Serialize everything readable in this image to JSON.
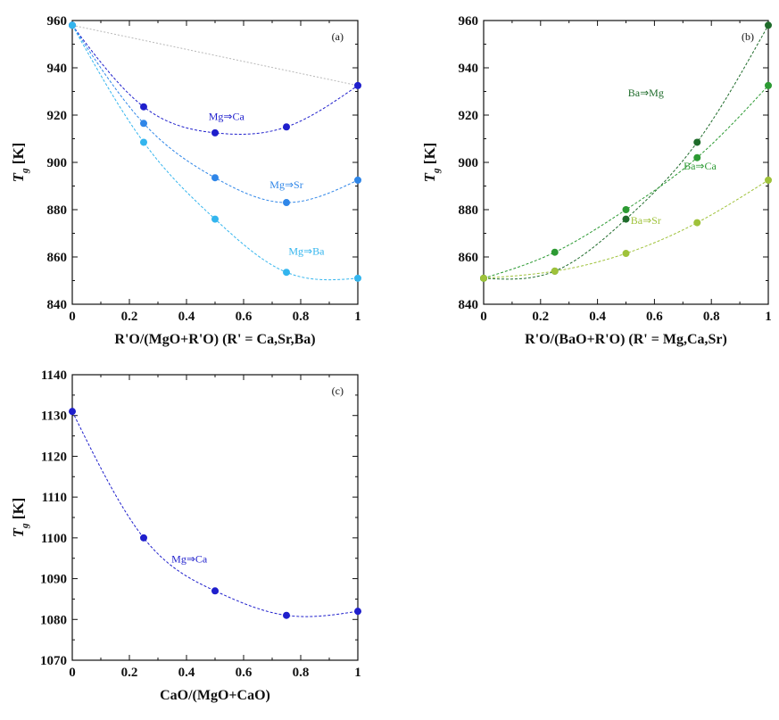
{
  "chart_data": [
    {
      "type": "scatter",
      "panel_label": "(a)",
      "xlabel": "R'O/(MgO+R'O) (R' = Ca,Sr,Ba)",
      "ylabel_main": "T",
      "ylabel_sub": "g",
      "ylabel_unit": "[K]",
      "xlim": [
        0,
        1
      ],
      "ylim": [
        840,
        960
      ],
      "xticks": [
        0,
        0.2,
        0.4,
        0.6,
        0.8,
        1
      ],
      "xtick_labels": [
        "0",
        "0.2",
        "0.4",
        "0.6",
        "0.8",
        "1"
      ],
      "yticks": [
        840,
        860,
        880,
        900,
        920,
        940,
        960
      ],
      "ytick_labels": [
        "840",
        "860",
        "880",
        "900",
        "920",
        "940",
        "960"
      ],
      "reference_line": {
        "x": [
          0,
          1
        ],
        "y": [
          958,
          932.5
        ],
        "color": "#b8b8b8"
      },
      "series": [
        {
          "name": "Mg⇒Ca",
          "color": "#1f1fcc",
          "x": [
            0,
            0.25,
            0.5,
            0.75,
            1
          ],
          "y": [
            958,
            923.5,
            912.5,
            915,
            932.5
          ],
          "label_at": [
            0.54,
            918
          ]
        },
        {
          "name": "Mg⇒Sr",
          "color": "#2f86e8",
          "x": [
            0,
            0.25,
            0.5,
            0.75,
            1
          ],
          "y": [
            958,
            916.5,
            893.5,
            883,
            892.5
          ],
          "label_at": [
            0.75,
            889
          ]
        },
        {
          "name": "Mg⇒Ba",
          "color": "#33b5ee",
          "x": [
            0,
            0.25,
            0.5,
            0.75,
            1
          ],
          "y": [
            958,
            908.5,
            876,
            853.5,
            851
          ],
          "label_at": [
            0.82,
            861
          ]
        }
      ]
    },
    {
      "type": "scatter",
      "panel_label": "(b)",
      "xlabel": "R'O/(BaO+R'O) (R' = Mg,Ca,Sr)",
      "ylabel_main": "T",
      "ylabel_sub": "g",
      "ylabel_unit": "[K]",
      "xlim": [
        0,
        1
      ],
      "ylim": [
        840,
        960
      ],
      "xticks": [
        0,
        0.2,
        0.4,
        0.6,
        0.8,
        1
      ],
      "xtick_labels": [
        "0",
        "0.2",
        "0.4",
        "0.6",
        "0.8",
        "1"
      ],
      "yticks": [
        840,
        860,
        880,
        900,
        920,
        940,
        960
      ],
      "ytick_labels": [
        "840",
        "860",
        "880",
        "900",
        "920",
        "940",
        "960"
      ],
      "series": [
        {
          "name": "Ba⇒Mg",
          "color": "#1e6b2a",
          "x": [
            0,
            0.25,
            0.5,
            0.75,
            1
          ],
          "y": [
            851,
            854,
            876,
            908.5,
            958
          ],
          "label_at": [
            0.57,
            928
          ]
        },
        {
          "name": "Ba⇒Ca",
          "color": "#2c9a33",
          "x": [
            0,
            0.25,
            0.5,
            0.75,
            1
          ],
          "y": [
            851,
            862,
            880,
            902,
            932.5
          ],
          "label_at": [
            0.76,
            897
          ]
        },
        {
          "name": "Ba⇒Sr",
          "color": "#9fc23a",
          "x": [
            0,
            0.25,
            0.5,
            0.75,
            1
          ],
          "y": [
            851,
            854,
            861.5,
            874.5,
            892.5
          ],
          "label_at": [
            0.57,
            874
          ]
        }
      ]
    },
    {
      "type": "scatter",
      "panel_label": "(c)",
      "xlabel": "CaO/(MgO+CaO)",
      "ylabel_main": "T",
      "ylabel_sub": "g",
      "ylabel_unit": "[K]",
      "xlim": [
        0,
        1
      ],
      "ylim": [
        1070,
        1140
      ],
      "xticks": [
        0,
        0.2,
        0.4,
        0.6,
        0.8,
        1
      ],
      "xtick_labels": [
        "0",
        "0.2",
        "0.4",
        "0.6",
        "0.8",
        "1"
      ],
      "yticks": [
        1070,
        1080,
        1090,
        1100,
        1110,
        1120,
        1130,
        1140
      ],
      "ytick_labels": [
        "1070",
        "1080",
        "1090",
        "1100",
        "1110",
        "1120",
        "1130",
        "1140"
      ],
      "series": [
        {
          "name": "Mg⇒Ca",
          "color": "#1f1fcc",
          "x": [
            0,
            0.25,
            0.5,
            0.75,
            1
          ],
          "y": [
            1131,
            1100,
            1087,
            1081,
            1082
          ],
          "label_at": [
            0.41,
            1094
          ]
        }
      ]
    }
  ]
}
